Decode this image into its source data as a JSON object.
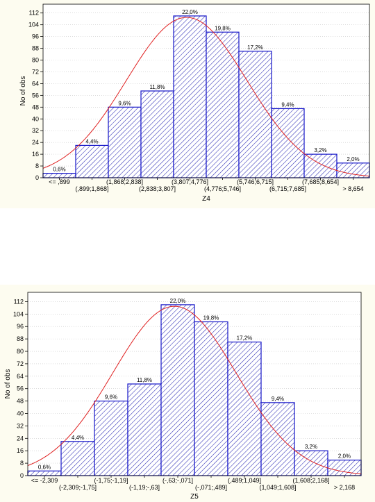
{
  "colors": {
    "bar_fill": "#ffffff",
    "hatch": "#2a2ab4",
    "bar_stroke": "#1414c8",
    "curve": "#e02020",
    "grid": "#c8c8c8",
    "panel_bg": "#fdfcf0"
  },
  "chart_data": [
    {
      "type": "bar",
      "subtype": "histogram-with-normal-fit",
      "xlabel": "Z4",
      "ylabel": "No of obs",
      "ylim": [
        0,
        118
      ],
      "yticks": [
        0,
        8,
        16,
        24,
        32,
        40,
        48,
        56,
        64,
        72,
        80,
        88,
        96,
        104,
        112
      ],
      "grid": true,
      "categories": [
        "<= ,899",
        "(,899;1,868]",
        "(1,868;2,838]",
        "(2,838;3,807]",
        "(3,807;4,776]",
        "(4,776;5,746]",
        "(5,746;6,715]",
        "(6,715;7,685]",
        "(7,685;8,654]",
        "> 8,654"
      ],
      "values": [
        3,
        22,
        48,
        59,
        110,
        99,
        86,
        47,
        16,
        10
      ],
      "percent_labels": [
        "0,6%",
        "4,4%",
        "9,6%",
        "11,8%",
        "22,0%",
        "19,8%",
        "17,2%",
        "9,4%",
        "3,2%",
        "2,0%"
      ],
      "fit_curve": {
        "type": "normal",
        "peak": 109,
        "peak_at_bin": 4.4,
        "sigma_bins": 1.85
      }
    },
    {
      "type": "bar",
      "subtype": "histogram-with-normal-fit",
      "xlabel": "Z5",
      "ylabel": "No of obs",
      "ylim": [
        0,
        118
      ],
      "yticks": [
        0,
        8,
        16,
        24,
        32,
        40,
        48,
        56,
        64,
        72,
        80,
        88,
        96,
        104,
        112
      ],
      "grid": true,
      "categories": [
        "<= -2,309",
        "(-2,309;-1,75]",
        "(-1,75;-1,19]",
        "(-1,19;-,63]",
        "(-,63;-,071]",
        "(-,071;,489]",
        "(,489;1,049]",
        "(1,049;1,608]",
        "(1,608;2,168]",
        "> 2,168"
      ],
      "values": [
        3,
        22,
        48,
        59,
        110,
        99,
        86,
        47,
        16,
        10
      ],
      "percent_labels": [
        "0,6%",
        "4,4%",
        "9,6%",
        "11,8%",
        "22,0%",
        "19,8%",
        "17,2%",
        "9,4%",
        "3,2%",
        "2,0%"
      ],
      "fit_curve": {
        "type": "normal",
        "peak": 109,
        "peak_at_bin": 4.4,
        "sigma_bins": 1.85
      }
    }
  ]
}
